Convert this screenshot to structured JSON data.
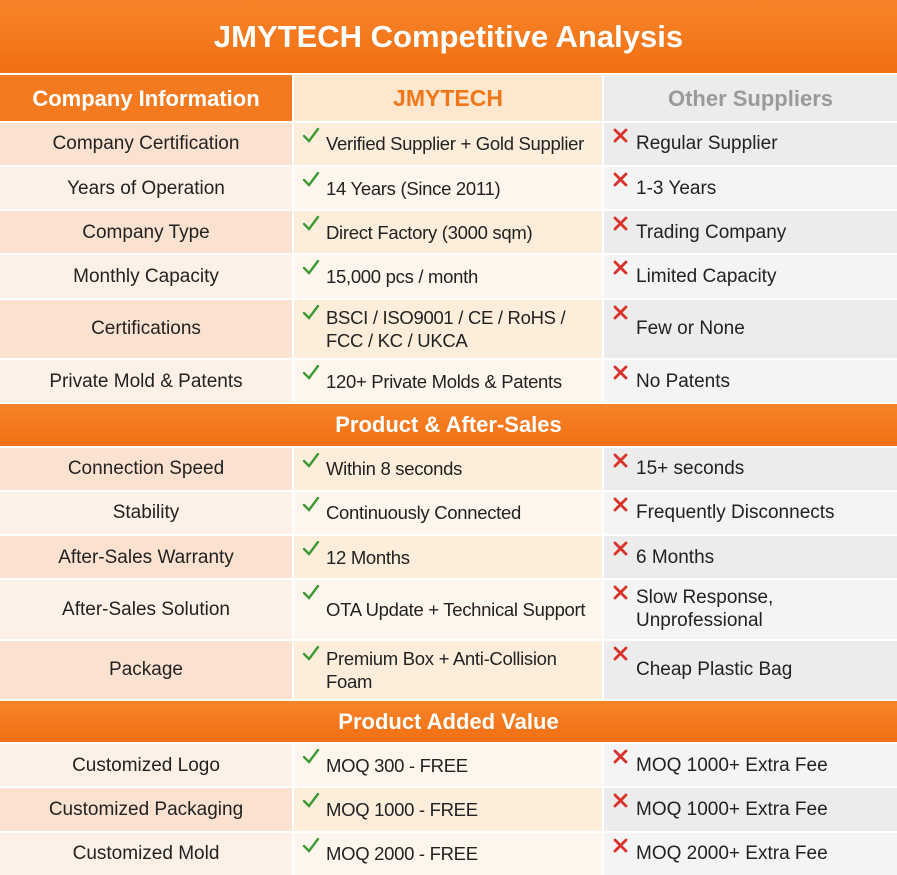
{
  "title": "JMYTECH Competitive Analysis",
  "header": {
    "label": "Company Information",
    "jmytech": "JMYTECH",
    "others": "Other Suppliers"
  },
  "sections": [
    {
      "rows": [
        {
          "label": "Company Certification",
          "jmytech": "Verified Supplier + Gold Supplier",
          "others": "Regular Supplier"
        },
        {
          "label": "Years of Operation",
          "jmytech": "14 Years (Since 2011)",
          "others": "1-3 Years"
        },
        {
          "label": "Company Type",
          "jmytech": "Direct Factory (3000 sqm)",
          "others": "Trading Company"
        },
        {
          "label": "Monthly Capacity",
          "jmytech": "15,000 pcs / month",
          "others": "Limited Capacity"
        },
        {
          "label": "Certifications",
          "jmytech": "BSCI / ISO9001 / CE / RoHS / FCC / KC / UKCA",
          "others": "Few or None"
        },
        {
          "label": "Private Mold & Patents",
          "jmytech": "120+ Private Molds & Patents",
          "others": "No Patents"
        }
      ]
    },
    {
      "title": "Product & After-Sales",
      "rows": [
        {
          "label": "Connection Speed",
          "jmytech": "Within 8 seconds",
          "others": "15+ seconds"
        },
        {
          "label": "Stability",
          "jmytech": "Continuously Connected",
          "others": "Frequently Disconnects"
        },
        {
          "label": "After-Sales Warranty",
          "jmytech": "12 Months",
          "others": "6 Months"
        },
        {
          "label": "After-Sales Solution",
          "jmytech": "OTA Update + Technical Support",
          "others": "Slow Response, Unprofessional"
        },
        {
          "label": "Package",
          "jmytech": "Premium Box + Anti-Collision Foam",
          "others": "Cheap Plastic Bag"
        }
      ]
    },
    {
      "title": "Product Added Value",
      "rows": [
        {
          "label": "Customized Logo",
          "jmytech": "MOQ 300 - FREE",
          "others": "MOQ 1000+ Extra Fee"
        },
        {
          "label": "Customized Packaging",
          "jmytech": "MOQ 1000 - FREE",
          "others": "MOQ 1000+ Extra Fee"
        },
        {
          "label": "Customized Mold",
          "jmytech": "MOQ 2000 - FREE",
          "others": "MOQ 2000+ Extra Fee"
        }
      ]
    }
  ]
}
